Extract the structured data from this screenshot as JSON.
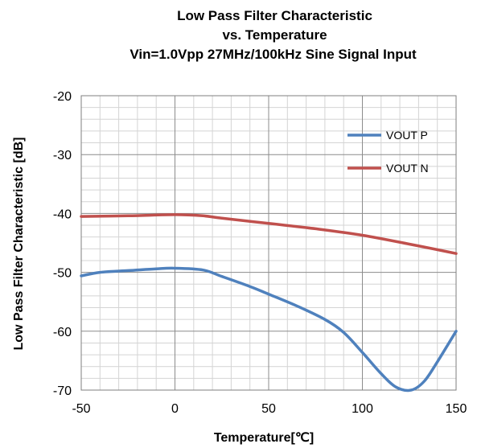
{
  "chart_data": {
    "type": "line",
    "title": [
      "Low Pass Filter  Characteristic",
      "vs. Temperature",
      "Vin=1.0Vpp 27MHz/100kHz Sine Signal Input"
    ],
    "xlabel": "Temperature[℃]",
    "ylabel": "Low Pass Filter Characteristic [dB]",
    "xlim": [
      -50,
      150
    ],
    "ylim": [
      -70,
      -20
    ],
    "xticks": [
      -50,
      0,
      50,
      100,
      150
    ],
    "yticks": [
      -20,
      -30,
      -40,
      -50,
      -60,
      -70
    ],
    "grid": true,
    "legend_position": "top-right",
    "series": [
      {
        "name": "VOUT P",
        "color": "#4F81BD",
        "points": [
          [
            -50,
            -50.6
          ],
          [
            -40,
            -50.0
          ],
          [
            -25,
            -49.7
          ],
          [
            -10,
            -49.4
          ],
          [
            0,
            -49.3
          ],
          [
            15,
            -49.6
          ],
          [
            25,
            -50.7
          ],
          [
            40,
            -52.4
          ],
          [
            50,
            -53.7
          ],
          [
            65,
            -55.7
          ],
          [
            80,
            -58.0
          ],
          [
            90,
            -60.2
          ],
          [
            100,
            -63.6
          ],
          [
            110,
            -67.2
          ],
          [
            118,
            -69.5
          ],
          [
            126,
            -70.0
          ],
          [
            133,
            -68.5
          ],
          [
            140,
            -65.2
          ],
          [
            150,
            -60.0
          ]
        ]
      },
      {
        "name": "VOUT N",
        "color": "#C0504D",
        "points": [
          [
            -50,
            -40.5
          ],
          [
            -25,
            -40.4
          ],
          [
            0,
            -40.2
          ],
          [
            15,
            -40.4
          ],
          [
            25,
            -40.8
          ],
          [
            50,
            -41.7
          ],
          [
            75,
            -42.6
          ],
          [
            100,
            -43.7
          ],
          [
            125,
            -45.2
          ],
          [
            150,
            -46.8
          ]
        ]
      }
    ]
  }
}
